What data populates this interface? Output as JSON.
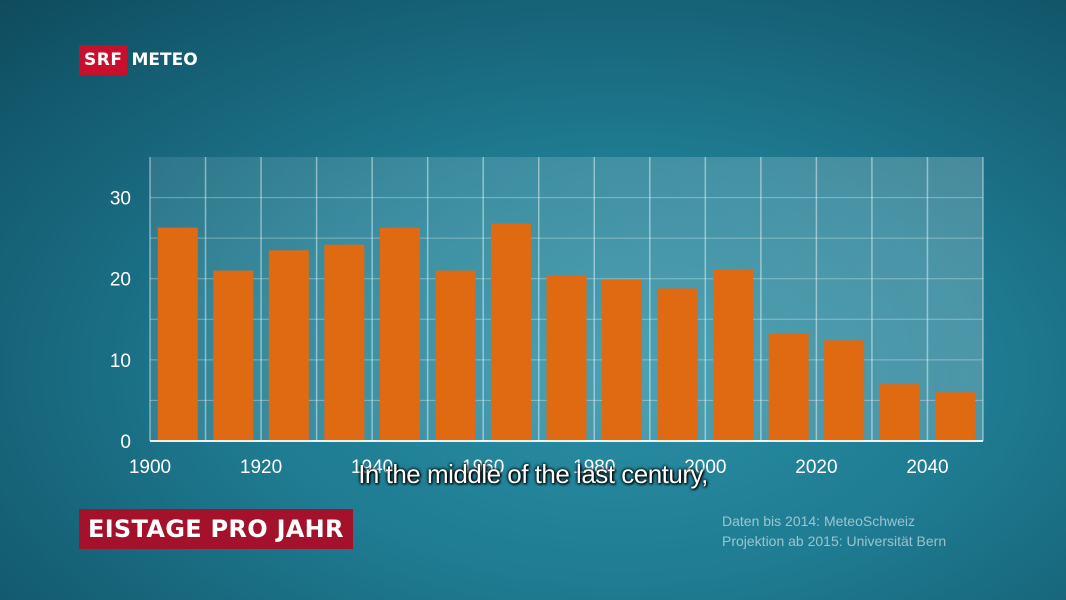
{
  "logo": {
    "brand": "SRF",
    "product": "METEO"
  },
  "subtitle": "In the middle of the last century,",
  "title": "EISTAGE PRO JAHR",
  "credits": [
    "Daten bis 2014: MeteoSchweiz",
    "Projektion ab 2015: Universität Bern"
  ],
  "colors": {
    "bar": "#e06a12",
    "badge": "#a3122a",
    "logo_red": "#c8102e"
  },
  "chart_data": {
    "type": "bar",
    "title": "EISTAGE PRO JAHR",
    "xlabel": "",
    "ylabel": "",
    "x": [
      1905,
      1915,
      1925,
      1935,
      1945,
      1955,
      1965,
      1975,
      1985,
      1995,
      2005,
      2015,
      2025,
      2035,
      2045
    ],
    "values": [
      26.3,
      21,
      23.5,
      24.2,
      26.3,
      21,
      26.8,
      20.4,
      19.9,
      18.8,
      21.1,
      13.2,
      12.4,
      7,
      6
    ],
    "xlim": [
      1900,
      2050
    ],
    "ylim": [
      0,
      35
    ],
    "yticks": [
      0,
      10,
      20,
      30
    ],
    "xticks": [
      1900,
      1920,
      1940,
      1960,
      1980,
      2000,
      2020,
      2040
    ],
    "xtick_labels": [
      "1900",
      "1920",
      "1940",
      "1960",
      "1980",
      "2000",
      "2020",
      "2040"
    ],
    "grid": true
  }
}
